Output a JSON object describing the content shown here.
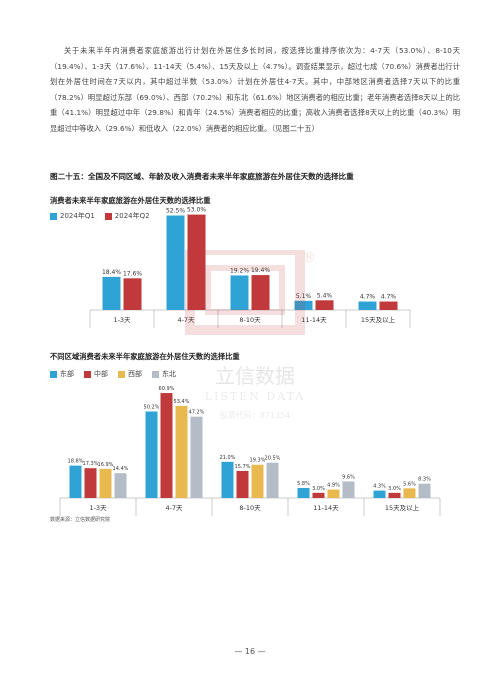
{
  "paragraph": "关于未来半年内消费者家庭旅游出行计划在外居住多长时间，按选择比重排序依次为：4-7天（53.0%）、8-10天（19.4%）、1-3天（17.6%）、11-14天（5.4%）、15天及以上（4.7%）。调查结果显示，超过七成（70.6%）消费者出行计划在外居住时间在7天以内，其中超过半数（53.0%）计划在外居住4-7天。其中，中部地区消费者选择7天以下的比重（78.2%）明显超过东部（69.0%）、西部（70.2%）和东北（61.6%）地区消费者的相应比重；老年消费者选择8天以上的比重（41.1%）明显超过中年（29.8%）和青年（24.5%）消费者相应的比重；高收入消费者选择8天以上的比重（40.3%）明显超过中等收入（29.6%）和低收入（22.0%）消费者的相应比重。（见图二十五）",
  "figure_title": "图二十五：全国及不同区域、年龄及收入消费者未来半年家庭旅游在外居住天数的选择比重",
  "watermark": {
    "name": "立信数据",
    "name_en": "LISTEN DATA",
    "code": "股票代码：871354",
    "registered": "®"
  },
  "source": "数据来源：立信数据研究院",
  "page_number": "— 16 —",
  "colors": {
    "q1": "#2fa3d5",
    "q2": "#c0393b",
    "east": "#2fa3d5",
    "central": "#c0393b",
    "west": "#e8b94e",
    "northeast": "#b4bcc8",
    "axis": "#999999"
  },
  "chart_data": [
    {
      "type": "bar",
      "title": "消费者未来半年家庭旅游在外居住天数的选择比重",
      "categories": [
        "1-3天",
        "4-7天",
        "8-10天",
        "11-14天",
        "15天及以上"
      ],
      "series": [
        {
          "name": "2024年Q1",
          "values": [
            18.4,
            52.5,
            19.2,
            5.1,
            4.7
          ],
          "labels": [
            "18.4%",
            "52.5%",
            "19.2%",
            "5.1%",
            "4.7%"
          ]
        },
        {
          "name": "2024年Q2",
          "values": [
            17.6,
            53.0,
            19.4,
            5.4,
            4.7
          ],
          "labels": [
            "17.6%",
            "53.0%",
            "19.4%",
            "5.4%",
            "4.7%"
          ]
        }
      ],
      "ylim": [
        0,
        60
      ],
      "legend": "top-left",
      "grid": false
    },
    {
      "type": "bar",
      "title": "不同区域消费者未来半年家庭旅游在外居住天数的选择比重",
      "categories": [
        "1-3天",
        "4-7天",
        "8-10天",
        "11-14天",
        "15天及以上"
      ],
      "series": [
        {
          "name": "东部",
          "values": [
            18.8,
            50.2,
            21.0,
            5.8,
            4.3
          ],
          "labels": [
            "18.8%",
            "50.2%",
            "21.0%",
            "5.8%",
            "4.3%"
          ]
        },
        {
          "name": "中部",
          "values": [
            17.3,
            60.9,
            15.7,
            3.0,
            3.0
          ],
          "labels": [
            "17.3%",
            "60.9%",
            "15.7%",
            "3.0%",
            "3.0%"
          ]
        },
        {
          "name": "西部",
          "values": [
            16.9,
            53.4,
            19.3,
            4.9,
            5.6
          ],
          "labels": [
            "16.9%",
            "53.4%",
            "19.3%",
            "4.9%",
            "5.6%"
          ]
        },
        {
          "name": "东北",
          "values": [
            14.4,
            47.2,
            20.5,
            9.6,
            8.3
          ],
          "labels": [
            "14.4%",
            "47.2%",
            "20.5%",
            "9.6%",
            "8.3%"
          ]
        }
      ],
      "ylim": [
        0,
        65
      ],
      "legend": "top-left",
      "grid": false
    }
  ]
}
